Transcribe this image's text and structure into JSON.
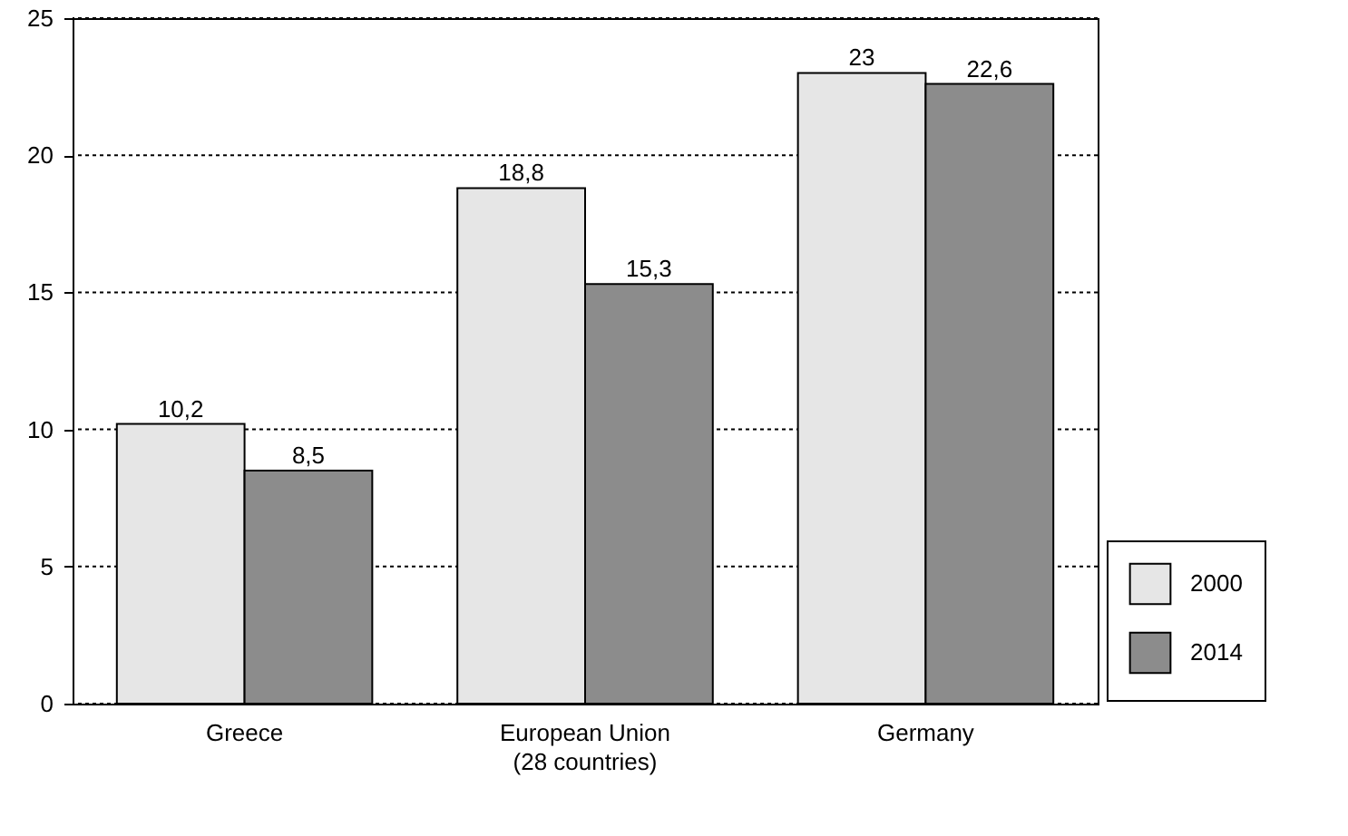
{
  "chart_data": {
    "type": "bar",
    "categories": [
      "Greece",
      "European Union\n(28 countries)",
      "Germany"
    ],
    "series": [
      {
        "name": "2000",
        "color": "#e6e6e6",
        "values": [
          10.2,
          18.8,
          23
        ],
        "value_labels": [
          "10,2",
          "18,8",
          "23"
        ]
      },
      {
        "name": "2014",
        "color": "#8c8c8c",
        "values": [
          8.5,
          15.3,
          22.6
        ],
        "value_labels": [
          "8,5",
          "15,3",
          "22,6"
        ]
      }
    ],
    "ylim": [
      0,
      25
    ],
    "yticks": [
      0,
      5,
      10,
      15,
      20,
      25
    ],
    "grid": "y",
    "legend": "bottom right"
  }
}
